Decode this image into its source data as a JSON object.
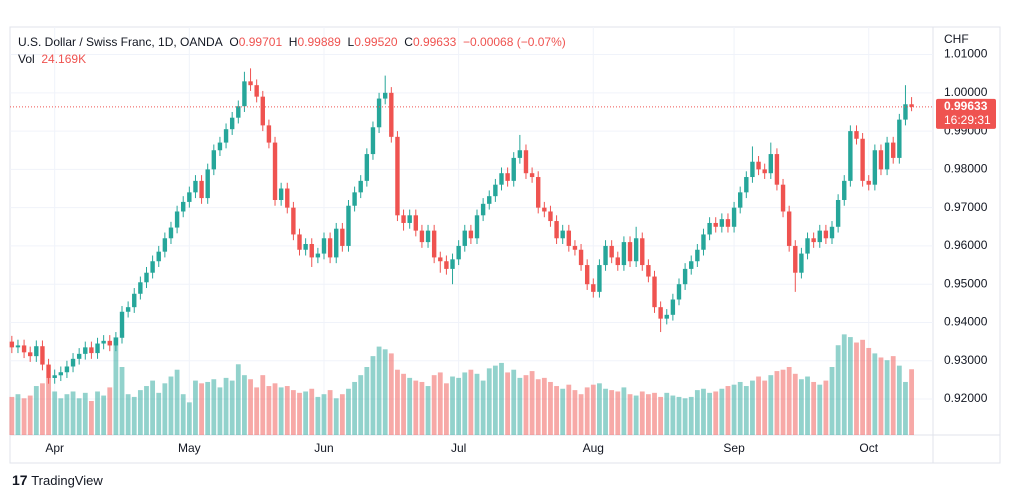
{
  "chart_data": {
    "type": "candlestick",
    "title": "U.S. Dollar / Swiss Franc, 1D, OANDA",
    "legend": {
      "open_label": "O",
      "open": "0.99701",
      "high_label": "H",
      "high": "0.99889",
      "low_label": "L",
      "low": "0.99520",
      "close_label": "C",
      "close": "0.99633",
      "change": "−0.00068 (−0.07%)",
      "volume_label": "Vol",
      "volume": "24.169K"
    },
    "y_axis_unit": "CHF",
    "last_price_label": "0.99633",
    "countdown": "16:29:31",
    "brand": "TradingView",
    "up_color": "#26a69a",
    "down_color": "#ef5350",
    "grid": true,
    "ylim": [
      0.9106,
      1.0172
    ],
    "yticks": [
      {
        "value": 0.92,
        "label": "0.92000"
      },
      {
        "value": 0.93,
        "label": "0.93000"
      },
      {
        "value": 0.94,
        "label": "0.94000"
      },
      {
        "value": 0.95,
        "label": "0.95000"
      },
      {
        "value": 0.96,
        "label": "0.96000"
      },
      {
        "value": 0.97,
        "label": "0.97000"
      },
      {
        "value": 0.98,
        "label": "0.98000"
      },
      {
        "value": 0.99,
        "label": "0.99000"
      },
      {
        "value": 1.0,
        "label": "1.00000"
      },
      {
        "value": 1.01,
        "label": "1.01000"
      }
    ],
    "xlim": [
      -0.3,
      150.5
    ],
    "xticks": [
      {
        "value": 7,
        "label": "Apr"
      },
      {
        "value": 29,
        "label": "May"
      },
      {
        "value": 51,
        "label": "Jun"
      },
      {
        "value": 73,
        "label": "Jul"
      },
      {
        "value": 95,
        "label": "Aug"
      },
      {
        "value": 118,
        "label": "Sep"
      },
      {
        "value": 140,
        "label": "Oct"
      }
    ],
    "volume_lim": [
      0,
      150000
    ],
    "open": [
      0.935,
      0.9335,
      0.934,
      0.9322,
      0.9312,
      0.9338,
      0.929,
      0.9255,
      0.9262,
      0.927,
      0.9285,
      0.9305,
      0.9318,
      0.9335,
      0.932,
      0.9345,
      0.9352,
      0.934,
      0.936,
      0.9428,
      0.944,
      0.9475,
      0.9505,
      0.953,
      0.956,
      0.9585,
      0.962,
      0.9648,
      0.969,
      0.9715,
      0.974,
      0.977,
      0.9725,
      0.98,
      0.985,
      0.987,
      0.9905,
      0.9935,
      0.9965,
      1.003,
      1.002,
      0.999,
      0.9915,
      0.987,
      0.972,
      0.975,
      0.97,
      0.963,
      0.959,
      0.9605,
      0.957,
      0.958,
      0.962,
      0.957,
      0.9645,
      0.96,
      0.9705,
      0.974,
      0.977,
      0.984,
      0.991,
      0.9985,
      1.0,
      0.9885,
      0.968,
      0.966,
      0.968,
      0.964,
      0.961,
      0.964,
      0.957,
      0.956,
      0.954,
      0.9565,
      0.96,
      0.964,
      0.962,
      0.968,
      0.971,
      0.973,
      0.976,
      0.979,
      0.977,
      0.983,
      0.985,
      0.979,
      0.978,
      0.97,
      0.969,
      0.9665,
      0.962,
      0.964,
      0.96,
      0.959,
      0.955,
      0.95,
      0.948,
      0.955,
      0.96,
      0.957,
      0.955,
      0.961,
      0.956,
      0.962,
      0.955,
      0.952,
      0.944,
      0.941,
      0.942,
      0.946,
      0.95,
      0.954,
      0.956,
      0.959,
      0.963,
      0.966,
      0.965,
      0.967,
      0.965,
      0.97,
      0.974,
      0.978,
      0.982,
      0.98,
      0.979,
      0.984,
      0.976,
      0.969,
      0.96,
      0.953,
      0.958,
      0.962,
      0.961,
      0.964,
      0.962,
      0.965,
      0.972,
      0.977,
      0.99,
      0.988,
      0.977,
      0.976,
      0.985,
      0.98,
      0.987,
      0.983,
      0.993,
      0.99701
    ],
    "high": [
      0.9365,
      0.9355,
      0.9355,
      0.9337,
      0.9353,
      0.9353,
      0.9305,
      0.9277,
      0.9285,
      0.93,
      0.932,
      0.9333,
      0.935,
      0.935,
      0.936,
      0.9367,
      0.9367,
      0.9375,
      0.9443,
      0.9455,
      0.949,
      0.952,
      0.9545,
      0.9575,
      0.96,
      0.9635,
      0.9663,
      0.9705,
      0.973,
      0.9755,
      0.9785,
      0.9785,
      0.9815,
      0.9865,
      0.9885,
      0.992,
      0.995,
      0.998,
      1.0055,
      1.0064,
      1.0035,
      1.0005,
      0.993,
      0.9885,
      0.9765,
      0.9765,
      0.9715,
      0.9645,
      0.962,
      0.962,
      0.9595,
      0.9635,
      0.9635,
      0.966,
      0.966,
      0.972,
      0.9755,
      0.9785,
      0.9855,
      0.9925,
      1.0,
      1.0045,
      1.0015,
      0.99,
      0.9695,
      0.9695,
      0.9695,
      0.9655,
      0.9655,
      0.9655,
      0.9585,
      0.9575,
      0.958,
      0.9615,
      0.9655,
      0.9655,
      0.9695,
      0.9725,
      0.9745,
      0.9775,
      0.9805,
      0.9805,
      0.9845,
      0.989,
      0.9865,
      0.9805,
      0.9795,
      0.9715,
      0.9705,
      0.968,
      0.9655,
      0.9655,
      0.9615,
      0.9605,
      0.9565,
      0.9515,
      0.9565,
      0.9615,
      0.9615,
      0.9585,
      0.9625,
      0.9625,
      0.965,
      0.9635,
      0.9565,
      0.9535,
      0.9455,
      0.9435,
      0.9475,
      0.9515,
      0.9555,
      0.9575,
      0.9605,
      0.9645,
      0.9675,
      0.9675,
      0.9685,
      0.9685,
      0.9715,
      0.9755,
      0.9795,
      0.986,
      0.9835,
      0.9815,
      0.987,
      0.9855,
      0.9775,
      0.9705,
      0.9615,
      0.9595,
      0.9635,
      0.9635,
      0.9655,
      0.9655,
      0.9665,
      0.9735,
      0.9785,
      0.9915,
      0.9915,
      0.9895,
      0.9785,
      0.9865,
      0.9865,
      0.9885,
      0.9885,
      0.9945,
      1.002,
      0.99889
    ],
    "low": [
      0.932,
      0.932,
      0.9307,
      0.9297,
      0.9297,
      0.9275,
      0.924,
      0.924,
      0.9247,
      0.9255,
      0.927,
      0.929,
      0.9303,
      0.9305,
      0.9305,
      0.933,
      0.9325,
      0.9325,
      0.9345,
      0.9413,
      0.9425,
      0.946,
      0.949,
      0.9515,
      0.9545,
      0.957,
      0.9605,
      0.9633,
      0.9675,
      0.97,
      0.9725,
      0.971,
      0.971,
      0.9785,
      0.9835,
      0.9855,
      0.989,
      0.992,
      0.995,
      1.0005,
      0.9975,
      0.99,
      0.9855,
      0.9705,
      0.9705,
      0.9685,
      0.9615,
      0.9575,
      0.9575,
      0.9545,
      0.9555,
      0.9565,
      0.9555,
      0.9555,
      0.9585,
      0.9585,
      0.969,
      0.9725,
      0.9755,
      0.9825,
      0.9895,
      0.997,
      0.987,
      0.9665,
      0.964,
      0.9645,
      0.9625,
      0.9595,
      0.9595,
      0.9555,
      0.953,
      0.9525,
      0.95,
      0.955,
      0.9585,
      0.9605,
      0.9605,
      0.9665,
      0.9695,
      0.9715,
      0.9745,
      0.9755,
      0.9755,
      0.9815,
      0.9775,
      0.9765,
      0.9685,
      0.9675,
      0.965,
      0.9605,
      0.9605,
      0.9585,
      0.9575,
      0.9535,
      0.9485,
      0.9465,
      0.9465,
      0.9535,
      0.9555,
      0.9535,
      0.9535,
      0.9545,
      0.9545,
      0.9535,
      0.9505,
      0.9425,
      0.9375,
      0.9395,
      0.9405,
      0.9445,
      0.9485,
      0.9525,
      0.9545,
      0.9575,
      0.9615,
      0.9635,
      0.9635,
      0.9635,
      0.9635,
      0.9685,
      0.9725,
      0.9765,
      0.9785,
      0.9775,
      0.9775,
      0.9745,
      0.9675,
      0.9585,
      0.948,
      0.9515,
      0.9565,
      0.9595,
      0.9595,
      0.9605,
      0.9605,
      0.9635,
      0.9705,
      0.9755,
      0.9865,
      0.9755,
      0.9745,
      0.9745,
      0.9785,
      0.9785,
      0.9815,
      0.9815,
      0.9915,
      0.9952
    ],
    "close": [
      0.9335,
      0.934,
      0.9322,
      0.9312,
      0.9338,
      0.929,
      0.9255,
      0.9262,
      0.927,
      0.9285,
      0.9305,
      0.9318,
      0.9335,
      0.932,
      0.9345,
      0.9352,
      0.934,
      0.936,
      0.9428,
      0.944,
      0.9475,
      0.9505,
      0.953,
      0.956,
      0.9585,
      0.962,
      0.9648,
      0.969,
      0.9715,
      0.974,
      0.977,
      0.9725,
      0.98,
      0.985,
      0.987,
      0.9905,
      0.9935,
      0.9965,
      1.003,
      1.002,
      0.999,
      0.9915,
      0.987,
      0.972,
      0.975,
      0.97,
      0.963,
      0.959,
      0.9605,
      0.957,
      0.958,
      0.962,
      0.957,
      0.9645,
      0.96,
      0.9705,
      0.974,
      0.977,
      0.984,
      0.991,
      0.9985,
      1.0,
      0.9885,
      0.968,
      0.966,
      0.968,
      0.964,
      0.961,
      0.964,
      0.957,
      0.956,
      0.954,
      0.9565,
      0.96,
      0.964,
      0.962,
      0.968,
      0.971,
      0.973,
      0.976,
      0.979,
      0.977,
      0.983,
      0.985,
      0.979,
      0.978,
      0.97,
      0.969,
      0.9665,
      0.962,
      0.964,
      0.96,
      0.959,
      0.955,
      0.95,
      0.948,
      0.955,
      0.96,
      0.957,
      0.955,
      0.961,
      0.956,
      0.962,
      0.955,
      0.952,
      0.944,
      0.941,
      0.942,
      0.946,
      0.95,
      0.954,
      0.956,
      0.959,
      0.963,
      0.966,
      0.965,
      0.967,
      0.965,
      0.97,
      0.974,
      0.978,
      0.982,
      0.98,
      0.979,
      0.984,
      0.976,
      0.969,
      0.96,
      0.953,
      0.958,
      0.962,
      0.961,
      0.964,
      0.962,
      0.965,
      0.972,
      0.977,
      0.99,
      0.988,
      0.977,
      0.976,
      0.985,
      0.98,
      0.987,
      0.983,
      0.993,
      0.99701,
      0.99633
    ],
    "volume": [
      14000,
      15000,
      13500,
      14500,
      18000,
      19000,
      21000,
      16000,
      13500,
      15000,
      16000,
      13500,
      15500,
      12500,
      16000,
      14500,
      17500,
      36000,
      25000,
      15000,
      14000,
      16500,
      18000,
      20000,
      15500,
      19000,
      21500,
      24000,
      15000,
      12000,
      20000,
      19000,
      19500,
      20500,
      17500,
      21000,
      20000,
      26000,
      22000,
      20500,
      17500,
      22000,
      18000,
      19000,
      17500,
      18000,
      16500,
      15500,
      16000,
      17000,
      14000,
      15000,
      16500,
      13500,
      15000,
      17000,
      19500,
      22000,
      25000,
      29000,
      32500,
      31500,
      30000,
      24000,
      22500,
      21000,
      20000,
      19500,
      18000,
      22000,
      23000,
      19000,
      21500,
      21000,
      23000,
      24000,
      22500,
      20000,
      24500,
      25500,
      26500,
      23000,
      24000,
      21000,
      22000,
      23500,
      20500,
      21000,
      19500,
      18000,
      17000,
      18500,
      16500,
      15000,
      17500,
      18500,
      19000,
      17000,
      16500,
      16000,
      17500,
      15000,
      14500,
      16000,
      15000,
      15500,
      14000,
      15500,
      14500,
      14000,
      13500,
      14000,
      16500,
      17000,
      15500,
      16000,
      17000,
      18000,
      18500,
      19500,
      18000,
      20000,
      21500,
      20000,
      22000,
      23500,
      24000,
      25000,
      22500,
      20500,
      21500,
      19500,
      18500,
      20000,
      25000,
      33000,
      37000,
      36000,
      34000,
      35000,
      32000,
      30000,
      28500,
      27500,
      29000,
      25500,
      19500,
      24169
    ]
  }
}
